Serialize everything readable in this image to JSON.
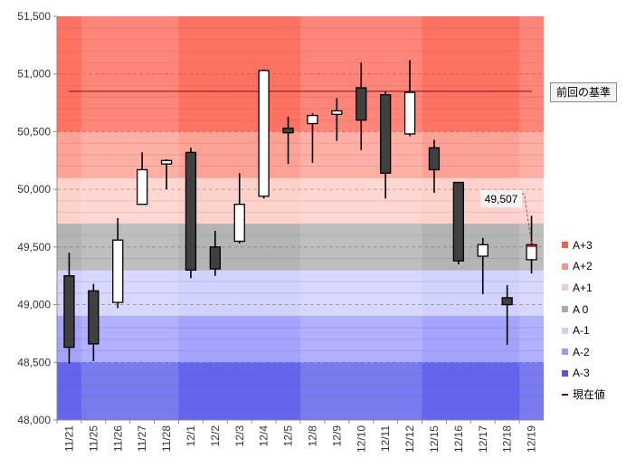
{
  "chart_data": {
    "type": "candlestick",
    "x": [
      "11/21",
      "11/25",
      "11/26",
      "11/27",
      "11/28",
      "12/1",
      "12/2",
      "12/3",
      "12/4",
      "12/5",
      "12/8",
      "12/9",
      "12/10",
      "12/11",
      "12/12",
      "12/15",
      "12/16",
      "12/17",
      "12/18",
      "12/19"
    ],
    "candles": [
      {
        "open": 49250,
        "high": 49450,
        "low": 48490,
        "close": 48630
      },
      {
        "open": 49120,
        "high": 49180,
        "low": 48510,
        "close": 48660
      },
      {
        "open": 49020,
        "high": 49750,
        "low": 48970,
        "close": 49560
      },
      {
        "open": 49870,
        "high": 50320,
        "low": 49870,
        "close": 50170
      },
      {
        "open": 50220,
        "high": 50260,
        "low": 50000,
        "close": 50250
      },
      {
        "open": 50320,
        "high": 50360,
        "low": 49230,
        "close": 49300
      },
      {
        "open": 49500,
        "high": 49640,
        "low": 49250,
        "close": 49310
      },
      {
        "open": 49550,
        "high": 50140,
        "low": 49530,
        "close": 49870
      },
      {
        "open": 49940,
        "high": 51040,
        "low": 49920,
        "close": 51030
      },
      {
        "open": 50530,
        "high": 50630,
        "low": 50220,
        "close": 50490
      },
      {
        "open": 50570,
        "high": 50660,
        "low": 50230,
        "close": 50640
      },
      {
        "open": 50650,
        "high": 50790,
        "low": 50420,
        "close": 50680
      },
      {
        "open": 50880,
        "high": 51100,
        "low": 50340,
        "close": 50600
      },
      {
        "open": 50820,
        "high": 50850,
        "low": 49920,
        "close": 50140
      },
      {
        "open": 50480,
        "high": 51120,
        "low": 50460,
        "close": 50840
      },
      {
        "open": 50360,
        "high": 50430,
        "low": 49970,
        "close": 50170
      },
      {
        "open": 50060,
        "high": 50060,
        "low": 49350,
        "close": 49380
      },
      {
        "open": 49420,
        "high": 49580,
        "low": 49090,
        "close": 49520
      },
      {
        "open": 49060,
        "high": 49170,
        "low": 48650,
        "close": 49000
      },
      {
        "open": 49390,
        "high": 49770,
        "low": 49270,
        "close": 49520
      }
    ],
    "ylim": [
      48000,
      51500
    ],
    "yticks": [
      48000,
      48500,
      49000,
      49500,
      50000,
      50500,
      51000,
      51500
    ],
    "ytick_labels": [
      "48,000",
      "48,500",
      "49,000",
      "49,500",
      "50,000",
      "50,500",
      "51,000",
      "51,500"
    ],
    "reference_value": 50850,
    "reference_label": "前回の基準",
    "current_value": 49507,
    "current_label": "49,507",
    "week_shading": [
      {
        "from": "11/25",
        "to": "11/28"
      },
      {
        "from": "12/8",
        "to": "12/12"
      },
      {
        "from": "12/19",
        "to": "12/19"
      }
    ],
    "bands": [
      {
        "name": "A+3",
        "from": 50500,
        "to": 51500,
        "color": "#ff7262"
      },
      {
        "name": "A+2",
        "from": 50100,
        "to": 50500,
        "color": "#ffa296"
      },
      {
        "name": "A+1",
        "from": 49700,
        "to": 50100,
        "color": "#ffd1cb"
      },
      {
        "name": "A 0",
        "from": 49300,
        "to": 49700,
        "color": "#b4b4b4"
      },
      {
        "name": "A-1",
        "from": 48900,
        "to": 49300,
        "color": "#d2d2ff"
      },
      {
        "name": "A-2",
        "from": 48500,
        "to": 48900,
        "color": "#a4a4ff"
      },
      {
        "name": "A-3",
        "from": 48000,
        "to": 48500,
        "color": "#6464ee"
      }
    ],
    "legend": [
      {
        "label": "A+3",
        "color": "#f25a4c",
        "kind": "box"
      },
      {
        "label": "A+2",
        "color": "#f49488",
        "kind": "box"
      },
      {
        "label": "A+1",
        "color": "#f9c8c0",
        "kind": "box"
      },
      {
        "label": "A 0",
        "color": "#a9a9a9",
        "kind": "box"
      },
      {
        "label": "A-1",
        "color": "#cfcff6",
        "kind": "box"
      },
      {
        "label": "A-2",
        "color": "#9a9af4",
        "kind": "box"
      },
      {
        "label": "A-3",
        "color": "#5454e8",
        "kind": "box"
      },
      {
        "label": "現在値",
        "color": "#8b0000",
        "kind": "line"
      }
    ],
    "legend_position": "right",
    "grid": true
  }
}
